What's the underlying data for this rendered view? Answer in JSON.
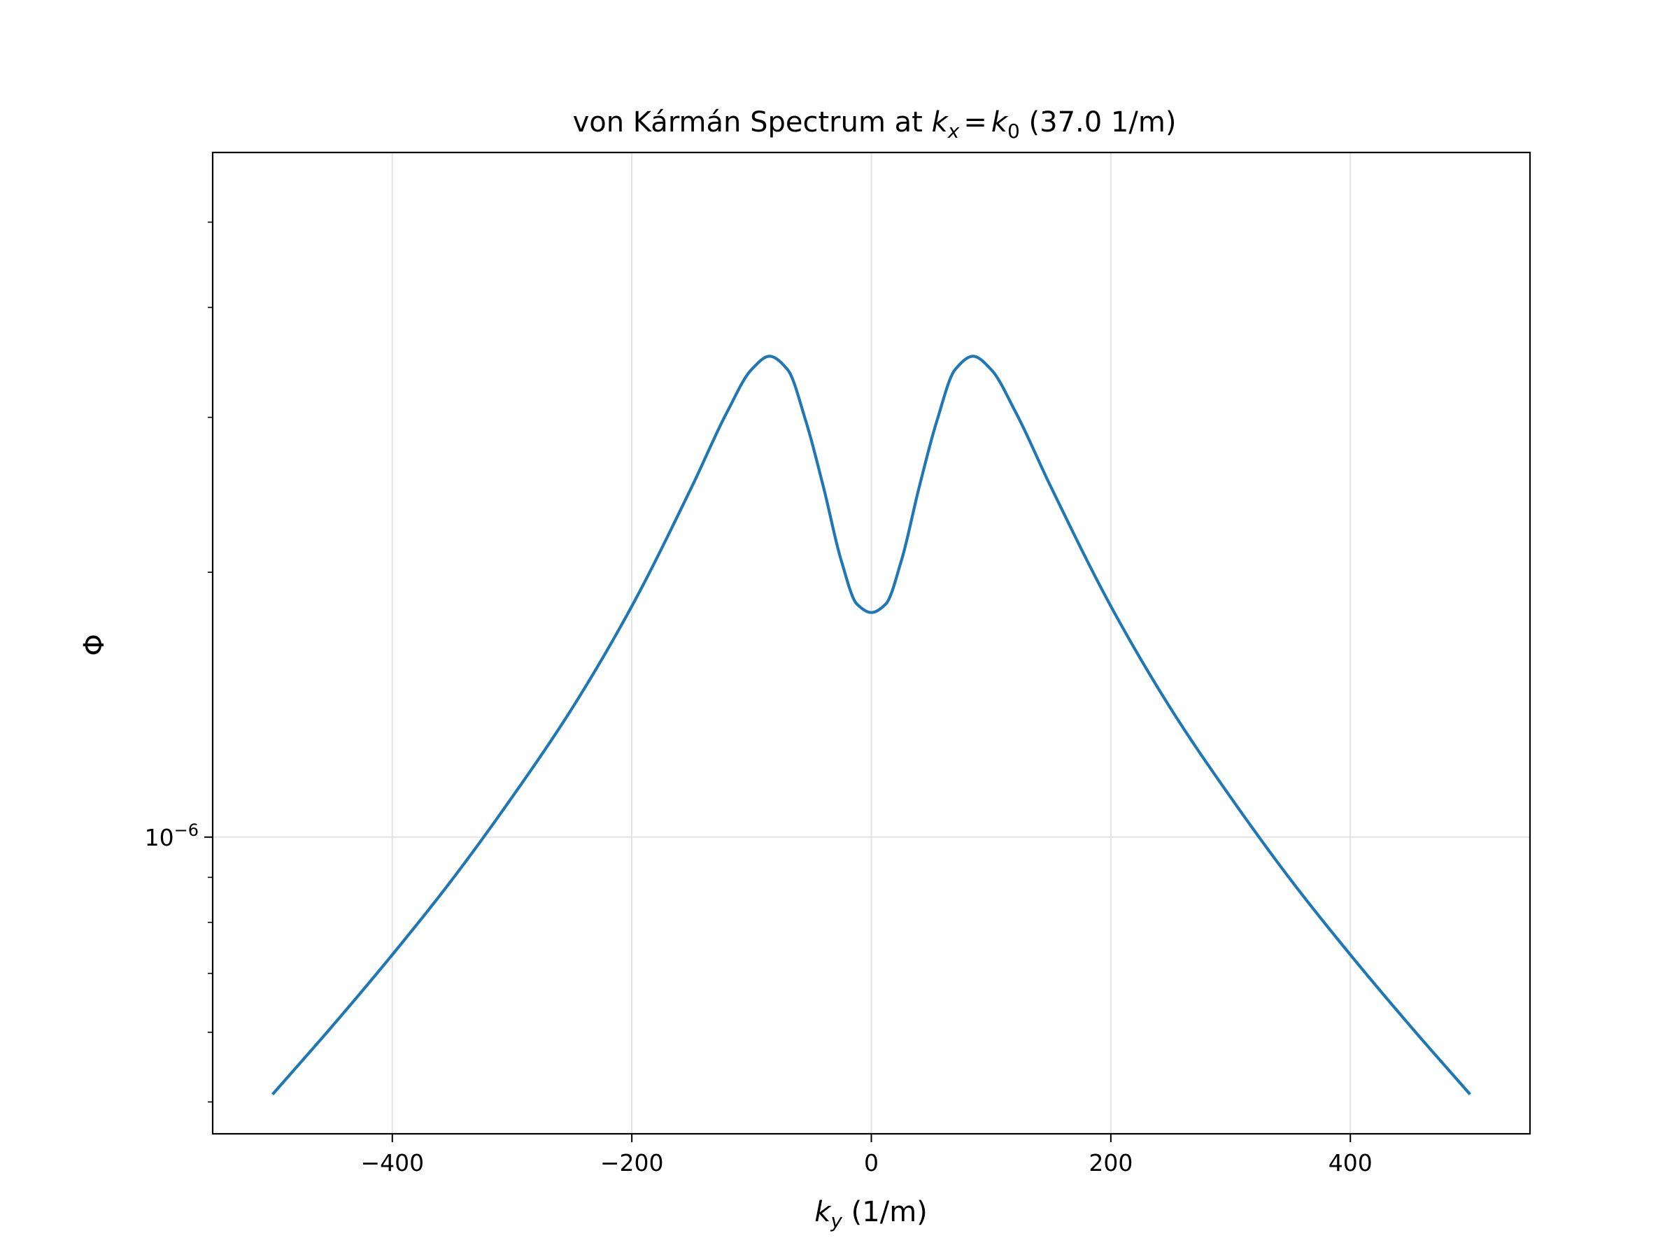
{
  "chart_data": {
    "type": "line",
    "title": {
      "prefix": "von Kármán Spectrum at ",
      "eq_lhs_base": "k",
      "eq_lhs_sub": "x",
      "eq_sign": "=",
      "eq_rhs_base": "k",
      "eq_rhs_sub": "0",
      "suffix": " (37.0 1/m)"
    },
    "xlabel": {
      "base": "k",
      "sub": "y",
      "unit": " (1/m)"
    },
    "ylabel": "Φ",
    "xscale": "linear",
    "yscale": "log",
    "xlim": [
      -550,
      550
    ],
    "ylim": [
      4.6e-07,
      6e-06
    ],
    "grid": true,
    "legend": "none",
    "x_ticks": [
      {
        "value": -400,
        "label": "−400"
      },
      {
        "value": -200,
        "label": "−200"
      },
      {
        "value": 0,
        "label": "0"
      },
      {
        "value": 200,
        "label": "200"
      },
      {
        "value": 400,
        "label": "400"
      }
    ],
    "y_major_ticks": [
      {
        "value": 1e-06,
        "base": "10",
        "exp": "−6"
      }
    ],
    "y_minor_ticks": [
      5e-07,
      6e-07,
      7e-07,
      8e-07,
      9e-07,
      2e-06,
      3e-06,
      4e-06,
      5e-06
    ],
    "series": [
      {
        "color": "#1f77b4",
        "points": [
          [
            -500,
            5.1e-07
          ],
          [
            -450,
            6.1e-07
          ],
          [
            -400,
            7.35e-07
          ],
          [
            -350,
            8.95e-07
          ],
          [
            -300,
            1.11e-06
          ],
          [
            -250,
            1.4e-06
          ],
          [
            -200,
            1.83e-06
          ],
          [
            -150,
            2.5e-06
          ],
          [
            -120,
            3.05e-06
          ],
          [
            -100,
            3.4e-06
          ],
          [
            -85,
            3.52e-06
          ],
          [
            -70,
            3.4e-06
          ],
          [
            -55,
            2.98e-06
          ],
          [
            -40,
            2.5e-06
          ],
          [
            -25,
            2.06e-06
          ],
          [
            -12,
            1.84e-06
          ],
          [
            0,
            1.8e-06
          ],
          [
            12,
            1.84e-06
          ],
          [
            25,
            2.06e-06
          ],
          [
            40,
            2.5e-06
          ],
          [
            55,
            2.98e-06
          ],
          [
            70,
            3.4e-06
          ],
          [
            85,
            3.52e-06
          ],
          [
            100,
            3.4e-06
          ],
          [
            120,
            3.05e-06
          ],
          [
            150,
            2.5e-06
          ],
          [
            200,
            1.83e-06
          ],
          [
            250,
            1.4e-06
          ],
          [
            300,
            1.11e-06
          ],
          [
            350,
            8.95e-07
          ],
          [
            400,
            7.35e-07
          ],
          [
            450,
            6.1e-07
          ],
          [
            500,
            5.1e-07
          ]
        ]
      }
    ]
  }
}
